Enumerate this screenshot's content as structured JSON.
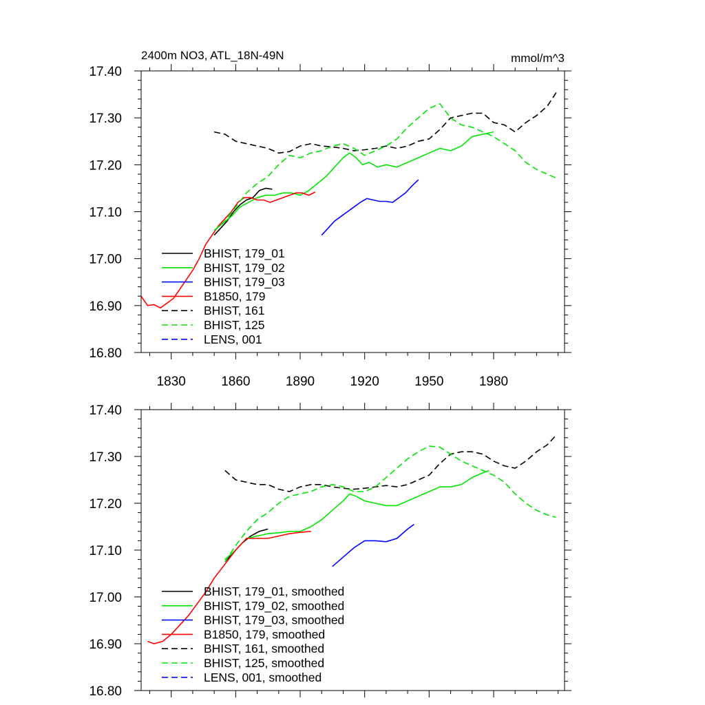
{
  "chart_data": [
    {
      "type": "line",
      "title": "2400m NO3, ATL_18N-49N",
      "units": "mmol/m^3",
      "xlim": [
        1816,
        2013
      ],
      "ylim": [
        16.8,
        17.4
      ],
      "x_ticks": [
        1830,
        1860,
        1890,
        1920,
        1950,
        1980
      ],
      "x_tick_labels": [
        "1830",
        "1860",
        "1890",
        "1920",
        "1950",
        "1980"
      ],
      "y_ticks": [
        16.8,
        16.9,
        17.0,
        17.1,
        17.2,
        17.3,
        17.4
      ],
      "y_tick_labels": [
        "16.80",
        "16.90",
        "17.00",
        "17.10",
        "17.20",
        "17.30",
        "17.40"
      ],
      "grid": false,
      "legend_position": "bottom-left",
      "series": [
        {
          "name": "BHIST, 179_01",
          "color": "#000000",
          "dash": "solid",
          "x": [
            1850,
            1853,
            1856,
            1859,
            1862,
            1865,
            1868,
            1871,
            1874,
            1877
          ],
          "y": [
            17.05,
            17.065,
            17.08,
            17.1,
            17.115,
            17.125,
            17.13,
            17.145,
            17.15,
            17.148
          ]
        },
        {
          "name": "BHIST, 179_02",
          "color": "#00e600",
          "dash": "solid",
          "x": [
            1850,
            1854,
            1858,
            1862,
            1866,
            1870,
            1874,
            1878,
            1882,
            1886,
            1890,
            1894,
            1898,
            1902,
            1906,
            1910,
            1913,
            1916,
            1919,
            1922,
            1926,
            1930,
            1935,
            1940,
            1945,
            1950,
            1955,
            1960,
            1965,
            1970,
            1975,
            1980
          ],
          "y": [
            17.06,
            17.075,
            17.09,
            17.11,
            17.12,
            17.13,
            17.135,
            17.135,
            17.14,
            17.14,
            17.135,
            17.145,
            17.16,
            17.175,
            17.195,
            17.215,
            17.225,
            17.215,
            17.2,
            17.205,
            17.195,
            17.2,
            17.195,
            17.205,
            17.215,
            17.225,
            17.235,
            17.23,
            17.24,
            17.26,
            17.265,
            17.27
          ]
        },
        {
          "name": "BHIST, 179_03",
          "color": "#0000ff",
          "dash": "solid",
          "x": [
            1900,
            1903,
            1906,
            1909,
            1912,
            1915,
            1918,
            1921,
            1924,
            1927,
            1930,
            1933,
            1936,
            1939,
            1942,
            1945
          ],
          "y": [
            17.05,
            17.065,
            17.08,
            17.09,
            17.1,
            17.11,
            17.12,
            17.128,
            17.125,
            17.122,
            17.122,
            17.12,
            17.13,
            17.14,
            17.155,
            17.168
          ]
        },
        {
          "name": "B1850, 179",
          "color": "#ff0000",
          "dash": "solid",
          "x": [
            1816,
            1819,
            1822,
            1825,
            1828,
            1831,
            1834,
            1837,
            1840,
            1843,
            1846,
            1849,
            1852,
            1855,
            1858,
            1861,
            1864,
            1867,
            1870,
            1873,
            1876,
            1879,
            1882,
            1885,
            1888,
            1891,
            1894,
            1897
          ],
          "y": [
            16.92,
            16.9,
            16.902,
            16.895,
            16.905,
            16.915,
            16.935,
            16.955,
            16.975,
            17.0,
            17.03,
            17.05,
            17.07,
            17.085,
            17.1,
            17.12,
            17.13,
            17.13,
            17.125,
            17.125,
            17.12,
            17.125,
            17.13,
            17.135,
            17.14,
            17.14,
            17.135,
            17.142
          ]
        },
        {
          "name": "BHIST, 161",
          "color": "#000000",
          "dash": "dashed",
          "x": [
            1850,
            1855,
            1860,
            1865,
            1870,
            1875,
            1880,
            1885,
            1890,
            1895,
            1900,
            1905,
            1910,
            1915,
            1920,
            1925,
            1930,
            1935,
            1940,
            1945,
            1950,
            1955,
            1960,
            1965,
            1970,
            1975,
            1980,
            1985,
            1990,
            1995,
            2000,
            2005,
            2010
          ],
          "y": [
            17.27,
            17.265,
            17.25,
            17.245,
            17.24,
            17.235,
            17.225,
            17.228,
            17.24,
            17.245,
            17.24,
            17.238,
            17.235,
            17.23,
            17.232,
            17.235,
            17.24,
            17.235,
            17.24,
            17.25,
            17.255,
            17.275,
            17.3,
            17.305,
            17.31,
            17.31,
            17.29,
            17.285,
            17.27,
            17.29,
            17.305,
            17.325,
            17.36
          ]
        },
        {
          "name": "BHIST, 125",
          "color": "#00e600",
          "dash": "dashed",
          "x": [
            1850,
            1855,
            1860,
            1865,
            1870,
            1875,
            1880,
            1885,
            1890,
            1895,
            1900,
            1905,
            1910,
            1915,
            1920,
            1925,
            1930,
            1935,
            1940,
            1945,
            1950,
            1955,
            1960,
            1965,
            1970,
            1975,
            1980,
            1985,
            1990,
            1995,
            2000,
            2005,
            2010
          ],
          "y": [
            17.06,
            17.08,
            17.11,
            17.14,
            17.16,
            17.175,
            17.2,
            17.22,
            17.215,
            17.225,
            17.23,
            17.24,
            17.245,
            17.235,
            17.22,
            17.23,
            17.24,
            17.255,
            17.28,
            17.3,
            17.32,
            17.33,
            17.3,
            17.285,
            17.28,
            17.27,
            17.26,
            17.245,
            17.23,
            17.205,
            17.19,
            17.18,
            17.17
          ]
        },
        {
          "name": "LENS, 001",
          "color": "#0000ff",
          "dash": "dashed",
          "x": [],
          "y": []
        }
      ]
    },
    {
      "type": "line",
      "title": "",
      "xlim": [
        1816,
        2013
      ],
      "ylim": [
        16.8,
        17.4
      ],
      "x_ticks": [
        1830,
        1860,
        1890,
        1920,
        1950,
        1980
      ],
      "y_ticks": [
        16.8,
        16.9,
        17.0,
        17.1,
        17.2,
        17.3,
        17.4
      ],
      "y_tick_labels": [
        "16.80",
        "16.90",
        "17.00",
        "17.10",
        "17.20",
        "17.30",
        "17.40"
      ],
      "grid": false,
      "legend_position": "bottom-left",
      "series": [
        {
          "name": "BHIST, 179_01, smoothed",
          "color": "#000000",
          "dash": "solid",
          "x": [
            1855,
            1859,
            1863,
            1867,
            1871,
            1875
          ],
          "y": [
            17.075,
            17.095,
            17.115,
            17.13,
            17.14,
            17.145
          ]
        },
        {
          "name": "BHIST, 179_02, smoothed",
          "color": "#00e600",
          "dash": "solid",
          "x": [
            1855,
            1860,
            1865,
            1870,
            1875,
            1880,
            1885,
            1890,
            1895,
            1900,
            1905,
            1910,
            1913,
            1916,
            1920,
            1925,
            1930,
            1935,
            1940,
            1945,
            1950,
            1955,
            1960,
            1965,
            1970,
            1975,
            1978
          ],
          "y": [
            17.08,
            17.1,
            17.125,
            17.13,
            17.135,
            17.137,
            17.14,
            17.14,
            17.15,
            17.165,
            17.185,
            17.205,
            17.22,
            17.215,
            17.205,
            17.2,
            17.195,
            17.195,
            17.205,
            17.215,
            17.225,
            17.235,
            17.235,
            17.24,
            17.255,
            17.265,
            17.27
          ]
        },
        {
          "name": "BHIST, 179_03, smoothed",
          "color": "#0000ff",
          "dash": "solid",
          "x": [
            1905,
            1910,
            1915,
            1920,
            1925,
            1930,
            1935,
            1940,
            1943
          ],
          "y": [
            17.065,
            17.085,
            17.105,
            17.12,
            17.12,
            17.118,
            17.125,
            17.145,
            17.155
          ]
        },
        {
          "name": "B1850, 179, smoothed",
          "color": "#ff0000",
          "dash": "solid",
          "x": [
            1819,
            1822,
            1826,
            1830,
            1834,
            1838,
            1842,
            1846,
            1850,
            1855,
            1860,
            1865,
            1870,
            1875,
            1880,
            1885,
            1890,
            1895
          ],
          "y": [
            16.905,
            16.9,
            16.905,
            16.92,
            16.94,
            16.96,
            16.985,
            17.01,
            17.04,
            17.07,
            17.1,
            17.125,
            17.125,
            17.125,
            17.13,
            17.135,
            17.138,
            17.14
          ]
        },
        {
          "name": "BHIST, 161, smoothed",
          "color": "#000000",
          "dash": "dashed",
          "x": [
            1855,
            1860,
            1865,
            1870,
            1875,
            1880,
            1885,
            1890,
            1895,
            1900,
            1905,
            1910,
            1915,
            1920,
            1925,
            1930,
            1935,
            1940,
            1945,
            1950,
            1955,
            1960,
            1965,
            1970,
            1975,
            1980,
            1985,
            1990,
            1995,
            2000,
            2005,
            2009
          ],
          "y": [
            17.27,
            17.25,
            17.245,
            17.24,
            17.24,
            17.23,
            17.225,
            17.235,
            17.24,
            17.24,
            17.235,
            17.232,
            17.23,
            17.232,
            17.235,
            17.238,
            17.235,
            17.24,
            17.25,
            17.26,
            17.285,
            17.305,
            17.31,
            17.31,
            17.305,
            17.29,
            17.28,
            17.275,
            17.29,
            17.31,
            17.325,
            17.345
          ]
        },
        {
          "name": "BHIST, 125, smoothed",
          "color": "#00e600",
          "dash": "dashed",
          "x": [
            1855,
            1860,
            1865,
            1870,
            1875,
            1880,
            1885,
            1890,
            1895,
            1900,
            1905,
            1910,
            1915,
            1920,
            1925,
            1930,
            1935,
            1940,
            1945,
            1950,
            1955,
            1960,
            1965,
            1970,
            1975,
            1980,
            1985,
            1990,
            1995,
            2000,
            2005,
            2009
          ],
          "y": [
            17.075,
            17.11,
            17.14,
            17.165,
            17.18,
            17.2,
            17.215,
            17.22,
            17.225,
            17.235,
            17.24,
            17.235,
            17.225,
            17.225,
            17.235,
            17.255,
            17.275,
            17.295,
            17.31,
            17.322,
            17.32,
            17.305,
            17.29,
            17.28,
            17.27,
            17.26,
            17.245,
            17.22,
            17.2,
            17.185,
            17.175,
            17.17
          ]
        },
        {
          "name": "LENS, 001, smoothed",
          "color": "#0000ff",
          "dash": "dashed",
          "x": [],
          "y": []
        }
      ]
    }
  ]
}
